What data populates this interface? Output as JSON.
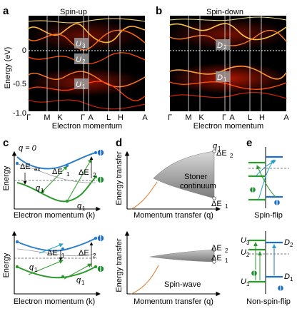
{
  "panels": {
    "a": {
      "label": "a",
      "title": "Spin-up",
      "ylabel": "Energy (eV)",
      "yticks": [
        "0",
        "-0.5",
        "-1.0"
      ],
      "kpoints": [
        "Γ",
        "M",
        "K",
        "Γ",
        "A",
        "L",
        "H",
        "A"
      ],
      "xlabel": "Electron momentum",
      "bands": [
        {
          "label": "U",
          "sub": "3"
        },
        {
          "label": "U",
          "sub": "2"
        },
        {
          "label": "U",
          "sub": "1"
        }
      ]
    },
    "b": {
      "label": "b",
      "title": "Spin-down",
      "kpoints": [
        "Γ",
        "M",
        "K",
        "Γ",
        "A",
        "L",
        "H",
        "A"
      ],
      "xlabel": "Electron momentum",
      "bands": [
        {
          "label": "D",
          "sub": "2"
        },
        {
          "label": "D",
          "sub": "1"
        }
      ]
    },
    "c": {
      "label": "c",
      "q_label": "q = 0",
      "ylabel": "Energy",
      "xlabel": "Electron momentum (k)",
      "top": {
        "dEex": "ΔE",
        "dEex_sub": "ex",
        "dE1": "ΔE",
        "dE1_sub": "1",
        "dE2": "ΔE",
        "dE2_sub": "2",
        "q1a": "q",
        "q1a_sub": "1",
        "q1b": "q",
        "q1b_sub": "1"
      },
      "bottom": {
        "dE1": "ΔE",
        "dE1_sub": "1",
        "dE2": "ΔE",
        "dE2_sub": "2",
        "q1a": "q",
        "q1a_sub": "1",
        "q1b": "q",
        "q1b_sub": "1"
      }
    },
    "d": {
      "label": "d",
      "ylabel": "Energy transfer",
      "xlabel": "Momentum transfer (q)",
      "top": {
        "q1": "q",
        "q1_sub": "1",
        "dE2": "ΔE",
        "dE2_sub": "2",
        "dE1": "ΔE",
        "dE1_sub": "1",
        "continuum_line1": "Stoner",
        "continuum_line2": "continuum"
      },
      "bottom": {
        "dE2": "ΔE",
        "dE2_sub": "2",
        "dE1": "ΔE",
        "dE1_sub": "1",
        "wave": "Spin-wave"
      }
    },
    "e": {
      "label": "e",
      "top_caption": "Spin-flip",
      "bottom_caption": "Non-spin-flip",
      "levels": [
        {
          "label": "U",
          "sub": "3"
        },
        {
          "label": "U",
          "sub": "2"
        },
        {
          "label": "U",
          "sub": "1"
        },
        {
          "label": "D",
          "sub": "2"
        },
        {
          "label": "D",
          "sub": "1"
        }
      ]
    }
  },
  "colors": {
    "spin_up": "#1a8a2e",
    "spin_down": "#1f6fc0",
    "band_blue": "#2f7fc8",
    "band_green": "#2e9a2e",
    "orange": "#e07a2a",
    "arrow_blue": "#2aa0c8",
    "arrow_green": "#2e9a2e"
  }
}
